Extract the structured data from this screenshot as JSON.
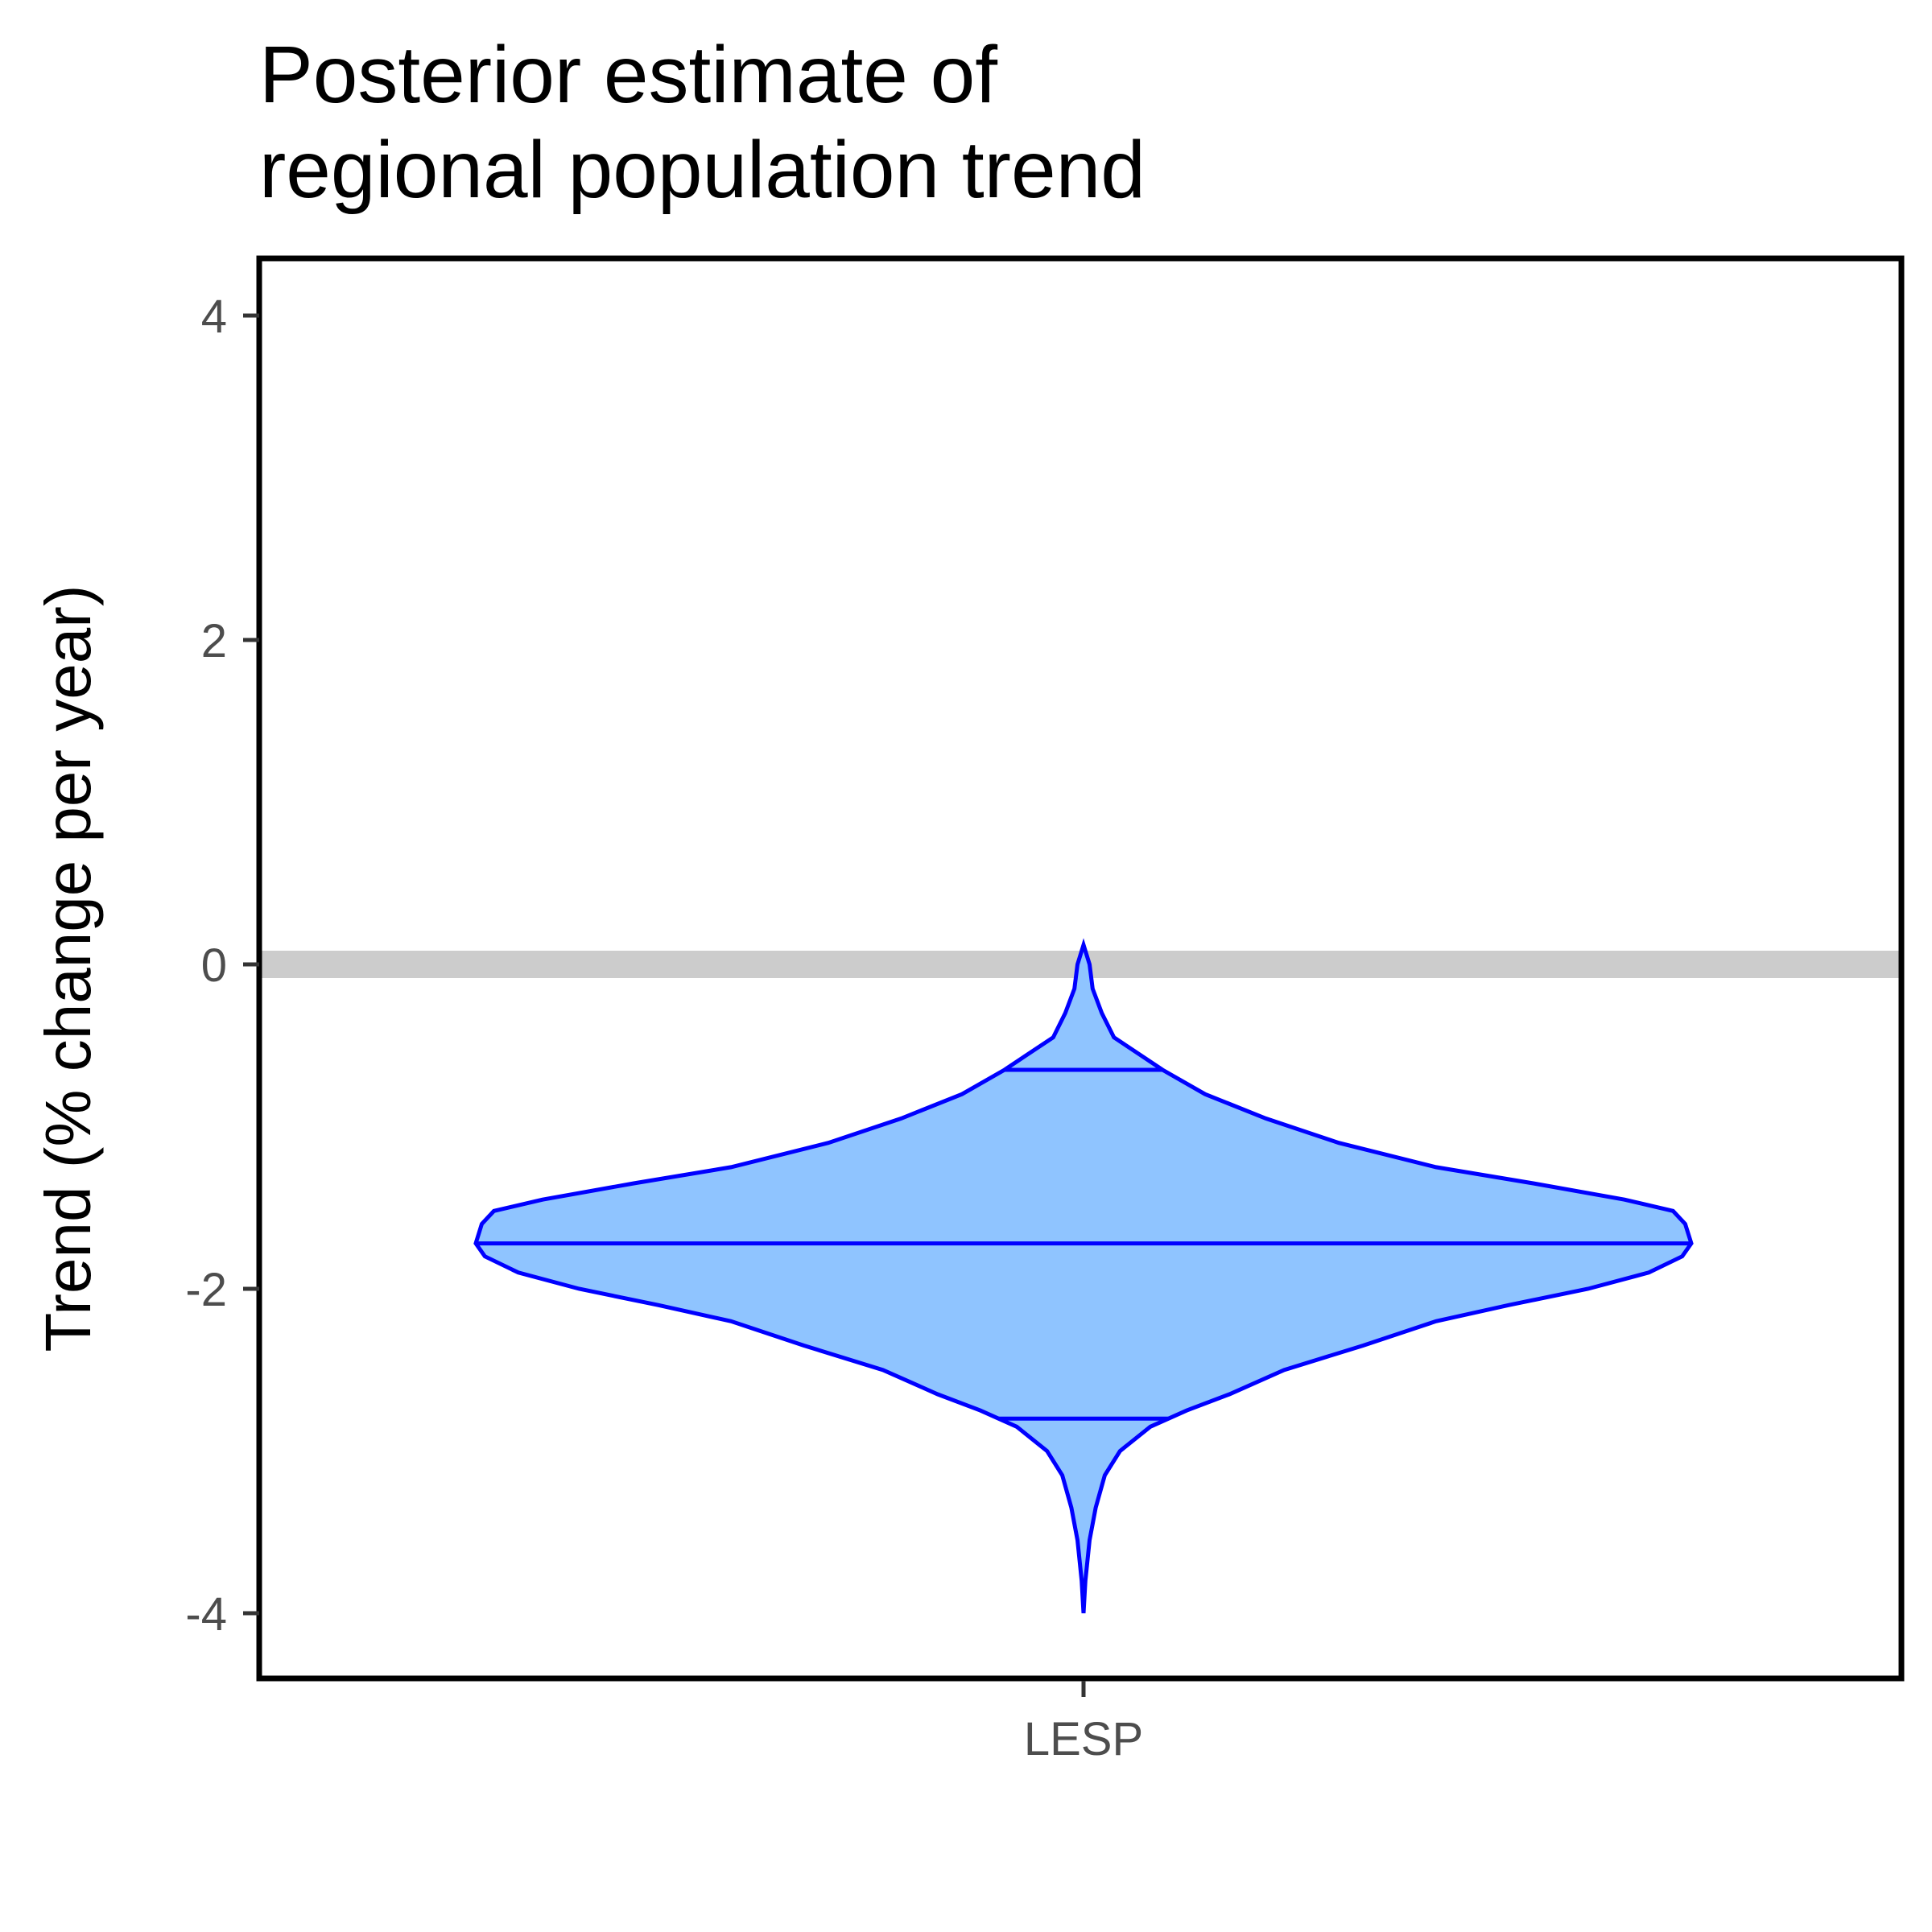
{
  "chart_data": {
    "type": "violin",
    "title_lines": [
      "Posterior estimate of",
      "regional population trend"
    ],
    "xlabel": "",
    "ylabel": "Trend (% change per year)",
    "categories": [
      "LESP"
    ],
    "ylim": [
      -4.4,
      4.4
    ],
    "y_ticks": [
      4,
      2,
      0,
      -2,
      -4
    ],
    "y_tick_labels": [
      "4",
      "2",
      "0",
      "-2",
      "-4"
    ],
    "reference_line": {
      "y": 0,
      "color": "#cccccc"
    },
    "violin": {
      "category": "LESP",
      "y_max": 0.12,
      "y_min": -4.0,
      "quantiles": {
        "upper": -0.65,
        "median": -1.72,
        "lower": -2.8
      },
      "density_profile": [
        [
          0.12,
          0.0
        ],
        [
          0.0,
          0.01
        ],
        [
          -0.15,
          0.015
        ],
        [
          -0.3,
          0.03
        ],
        [
          -0.45,
          0.05
        ],
        [
          -0.55,
          0.09
        ],
        [
          -0.65,
          0.13
        ],
        [
          -0.8,
          0.2
        ],
        [
          -0.95,
          0.3
        ],
        [
          -1.1,
          0.42
        ],
        [
          -1.25,
          0.58
        ],
        [
          -1.35,
          0.74
        ],
        [
          -1.45,
          0.89
        ],
        [
          -1.52,
          0.97
        ],
        [
          -1.6,
          0.99
        ],
        [
          -1.72,
          1.0
        ],
        [
          -1.8,
          0.985
        ],
        [
          -1.9,
          0.93
        ],
        [
          -2.0,
          0.83
        ],
        [
          -2.1,
          0.7
        ],
        [
          -2.2,
          0.58
        ],
        [
          -2.35,
          0.46
        ],
        [
          -2.5,
          0.33
        ],
        [
          -2.65,
          0.24
        ],
        [
          -2.75,
          0.17
        ],
        [
          -2.85,
          0.11
        ],
        [
          -3.0,
          0.06
        ],
        [
          -3.15,
          0.035
        ],
        [
          -3.35,
          0.02
        ],
        [
          -3.55,
          0.01
        ],
        [
          -3.8,
          0.003
        ],
        [
          -4.0,
          0.0
        ]
      ]
    },
    "colors": {
      "fill": "#8fc4ff",
      "stroke": "#0000ff",
      "panel_border": "#000000"
    }
  }
}
